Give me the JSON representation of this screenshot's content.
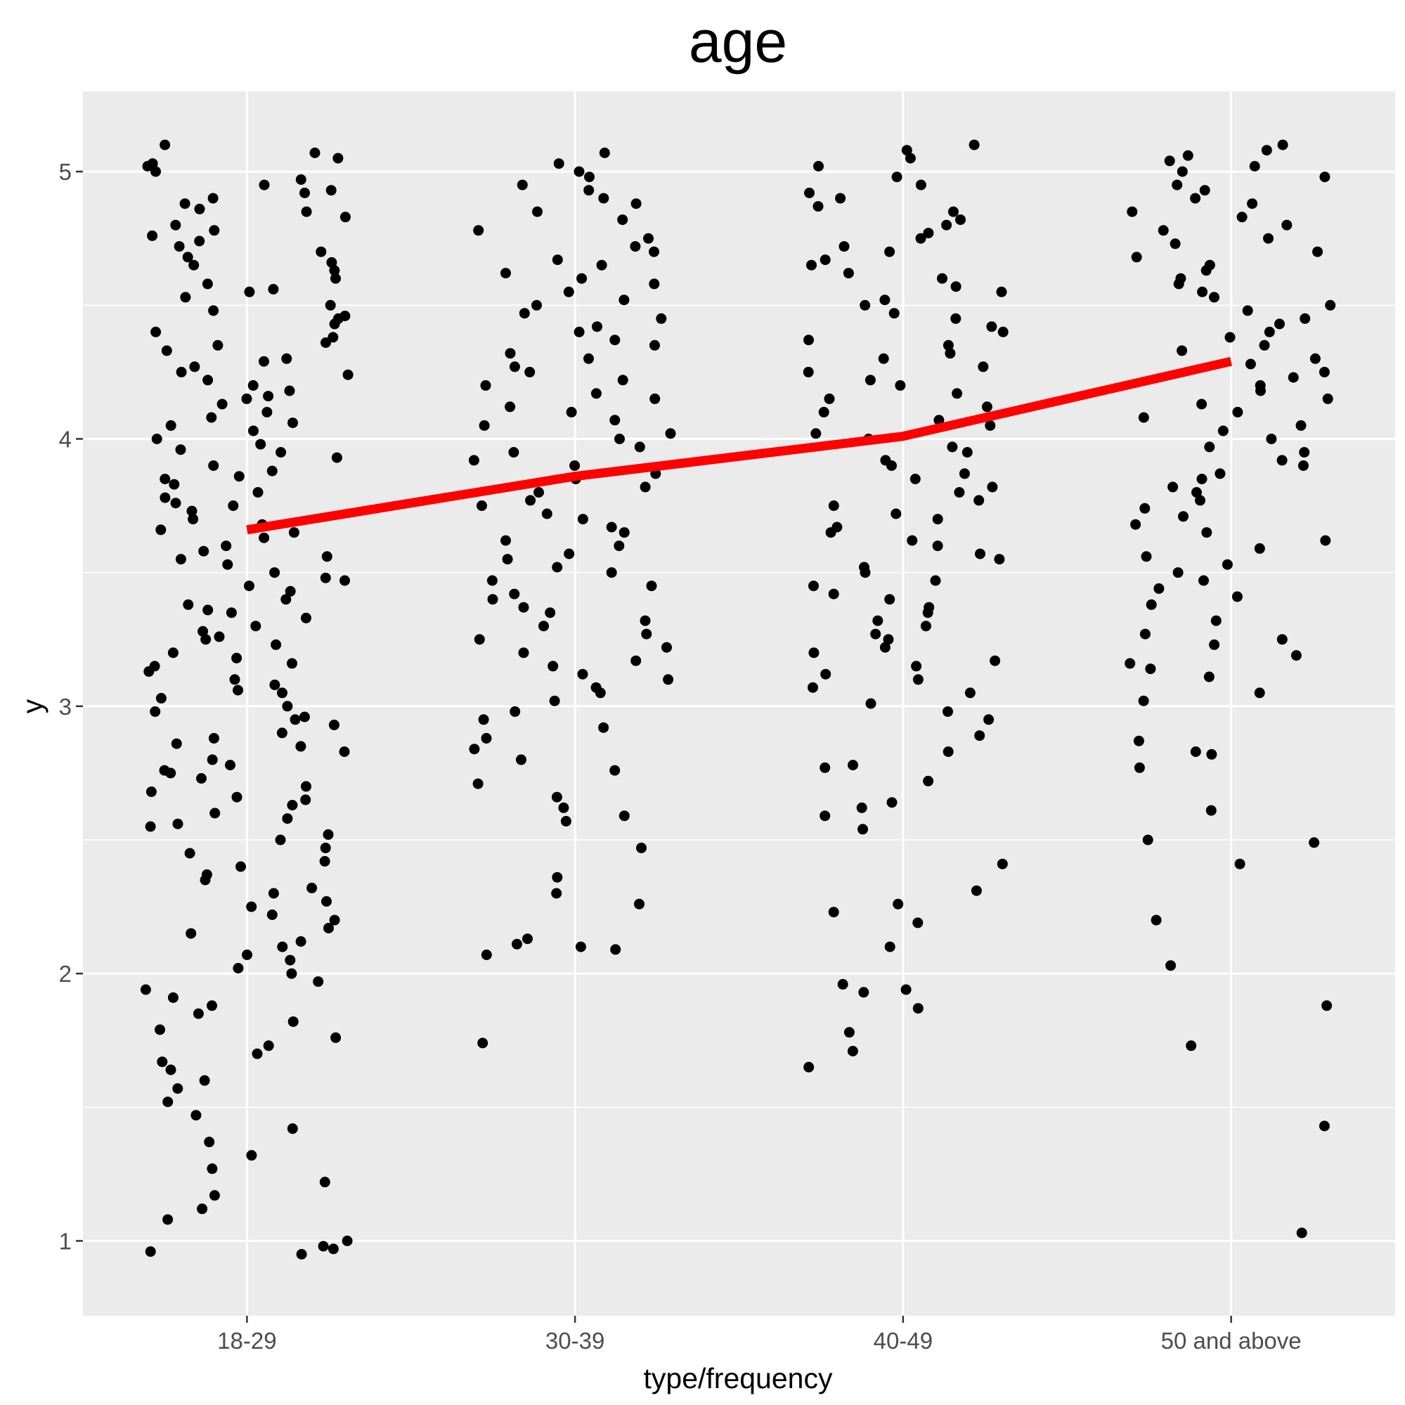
{
  "chart_data": {
    "type": "scatter",
    "title": "age",
    "xlabel": "type/frequency",
    "ylabel": "y",
    "categories": [
      "18-29",
      "30-39",
      "40-49",
      "50 and above"
    ],
    "y_ticks": [
      "1",
      "2",
      "3",
      "4",
      "5"
    ],
    "ylim": [
      0.72,
      5.3
    ],
    "grid": true,
    "point_color": "#000000",
    "panel_background": "#ebebeb",
    "series": [
      {
        "name": "",
        "kind": "line",
        "color": "#ff0000",
        "values": [
          3.66,
          3.86,
          4.01,
          4.29
        ]
      }
    ],
    "points": [
      {
        "category": "18-29",
        "y": [
          5.1,
          5.07,
          5.05,
          5.03,
          5.02,
          5.0,
          4.97,
          4.95,
          4.93,
          4.92,
          4.9,
          4.88,
          4.86,
          4.85,
          4.83,
          4.8,
          4.78,
          4.76,
          4.74,
          4.72,
          4.7,
          4.68,
          4.66,
          4.65,
          4.63,
          4.6,
          4.58,
          4.56,
          4.55,
          4.53,
          4.5,
          4.48,
          4.46,
          4.45,
          4.43,
          4.4,
          4.38,
          4.36,
          4.35,
          4.33,
          4.3,
          4.29,
          4.27,
          4.25,
          4.24,
          4.22,
          4.2,
          4.18,
          4.16,
          4.15,
          4.13,
          4.1,
          4.08,
          4.06,
          4.05,
          4.03,
          4.0,
          3.98,
          3.96,
          3.95,
          3.93,
          3.9,
          3.88,
          3.86,
          3.85,
          3.83,
          3.8,
          3.78,
          3.76,
          3.75,
          3.73,
          3.7,
          3.68,
          3.66,
          3.65,
          3.63,
          3.6,
          3.58,
          3.56,
          3.55,
          3.53,
          3.5,
          3.48,
          3.47,
          3.45,
          3.43,
          3.4,
          3.38,
          3.36,
          3.35,
          3.33,
          3.3,
          3.28,
          3.26,
          3.25,
          3.23,
          3.2,
          3.18,
          3.16,
          3.15,
          3.13,
          3.1,
          3.08,
          3.06,
          3.05,
          3.03,
          3.0,
          2.98,
          2.96,
          2.95,
          2.93,
          2.9,
          2.88,
          2.86,
          2.85,
          2.83,
          2.8,
          2.78,
          2.76,
          2.75,
          2.73,
          2.7,
          2.68,
          2.66,
          2.65,
          2.63,
          2.6,
          2.58,
          2.56,
          2.55,
          2.52,
          2.5,
          2.47,
          2.45,
          2.42,
          2.4,
          2.37,
          2.35,
          2.32,
          2.3,
          2.27,
          2.25,
          2.22,
          2.2,
          2.17,
          2.15,
          2.12,
          2.1,
          2.07,
          2.05,
          2.02,
          2.0,
          1.97,
          1.94,
          1.91,
          1.88,
          1.85,
          1.82,
          1.79,
          1.76,
          1.73,
          1.7,
          1.67,
          1.64,
          1.6,
          1.57,
          1.52,
          1.47,
          1.42,
          1.37,
          1.32,
          1.27,
          1.22,
          1.17,
          1.12,
          1.08,
          1.0,
          0.97,
          0.96,
          0.95,
          0.98
        ]
      },
      {
        "category": "30-39",
        "y": [
          5.07,
          5.03,
          5.0,
          4.98,
          4.95,
          4.93,
          4.9,
          4.88,
          4.85,
          4.82,
          4.78,
          4.75,
          4.72,
          4.7,
          4.67,
          4.65,
          4.62,
          4.6,
          4.58,
          4.55,
          4.52,
          4.5,
          4.47,
          4.45,
          4.42,
          4.4,
          4.37,
          4.35,
          4.32,
          4.3,
          4.27,
          4.25,
          4.22,
          4.2,
          4.17,
          4.15,
          4.12,
          4.1,
          4.07,
          4.05,
          4.02,
          4.0,
          3.97,
          3.95,
          3.92,
          3.9,
          3.87,
          3.85,
          3.82,
          3.8,
          3.77,
          3.75,
          3.72,
          3.7,
          3.67,
          3.65,
          3.62,
          3.6,
          3.57,
          3.55,
          3.52,
          3.5,
          3.47,
          3.45,
          3.42,
          3.4,
          3.37,
          3.35,
          3.32,
          3.3,
          3.27,
          3.25,
          3.22,
          3.2,
          3.17,
          3.15,
          3.12,
          3.1,
          3.07,
          3.05,
          3.02,
          2.98,
          2.95,
          2.92,
          2.88,
          2.84,
          2.8,
          2.76,
          2.71,
          2.66,
          2.62,
          2.59,
          2.57,
          2.47,
          2.36,
          2.3,
          2.26,
          2.13,
          2.11,
          2.1,
          2.09,
          2.07,
          1.74
        ]
      },
      {
        "category": "40-49",
        "y": [
          5.1,
          5.08,
          5.05,
          5.02,
          4.98,
          4.95,
          4.92,
          4.9,
          4.87,
          4.85,
          4.82,
          4.8,
          4.77,
          4.75,
          4.72,
          4.7,
          4.67,
          4.65,
          4.62,
          4.6,
          4.57,
          4.55,
          4.52,
          4.5,
          4.47,
          4.45,
          4.42,
          4.4,
          4.37,
          4.35,
          4.32,
          4.3,
          4.27,
          4.25,
          4.22,
          4.2,
          4.17,
          4.15,
          4.12,
          4.1,
          4.07,
          4.05,
          4.02,
          4.0,
          3.97,
          3.95,
          3.92,
          3.9,
          3.87,
          3.85,
          3.82,
          3.8,
          3.77,
          3.75,
          3.72,
          3.7,
          3.67,
          3.65,
          3.62,
          3.6,
          3.57,
          3.55,
          3.52,
          3.5,
          3.47,
          3.45,
          3.42,
          3.4,
          3.37,
          3.35,
          3.32,
          3.3,
          3.27,
          3.25,
          3.22,
          3.2,
          3.17,
          3.15,
          3.12,
          3.1,
          3.07,
          3.05,
          3.01,
          2.98,
          2.95,
          2.89,
          2.83,
          2.78,
          2.77,
          2.72,
          2.64,
          2.62,
          2.59,
          2.54,
          2.41,
          2.31,
          2.26,
          2.23,
          2.19,
          2.1,
          1.96,
          1.94,
          1.93,
          1.87,
          1.78,
          1.71,
          1.65
        ]
      },
      {
        "category": "50 and above",
        "y": [
          5.1,
          5.08,
          5.06,
          5.04,
          5.02,
          5.0,
          4.98,
          4.95,
          4.93,
          4.9,
          4.88,
          4.85,
          4.83,
          4.8,
          4.78,
          4.75,
          4.73,
          4.7,
          4.68,
          4.65,
          4.63,
          4.6,
          4.58,
          4.55,
          4.53,
          4.5,
          4.48,
          4.45,
          4.43,
          4.4,
          4.38,
          4.35,
          4.33,
          4.3,
          4.28,
          4.25,
          4.23,
          4.2,
          4.18,
          4.15,
          4.13,
          4.1,
          4.08,
          4.05,
          4.03,
          4.0,
          3.97,
          3.95,
          3.92,
          3.9,
          3.87,
          3.85,
          3.82,
          3.8,
          3.77,
          3.74,
          3.71,
          3.68,
          3.65,
          3.62,
          3.59,
          3.56,
          3.53,
          3.5,
          3.47,
          3.44,
          3.41,
          3.38,
          3.32,
          3.27,
          3.25,
          3.23,
          3.19,
          3.16,
          3.14,
          3.11,
          3.05,
          3.02,
          2.87,
          2.83,
          2.82,
          2.77,
          2.61,
          2.5,
          2.49,
          2.41,
          2.2,
          2.03,
          1.88,
          1.73,
          1.43,
          1.03
        ]
      }
    ]
  }
}
